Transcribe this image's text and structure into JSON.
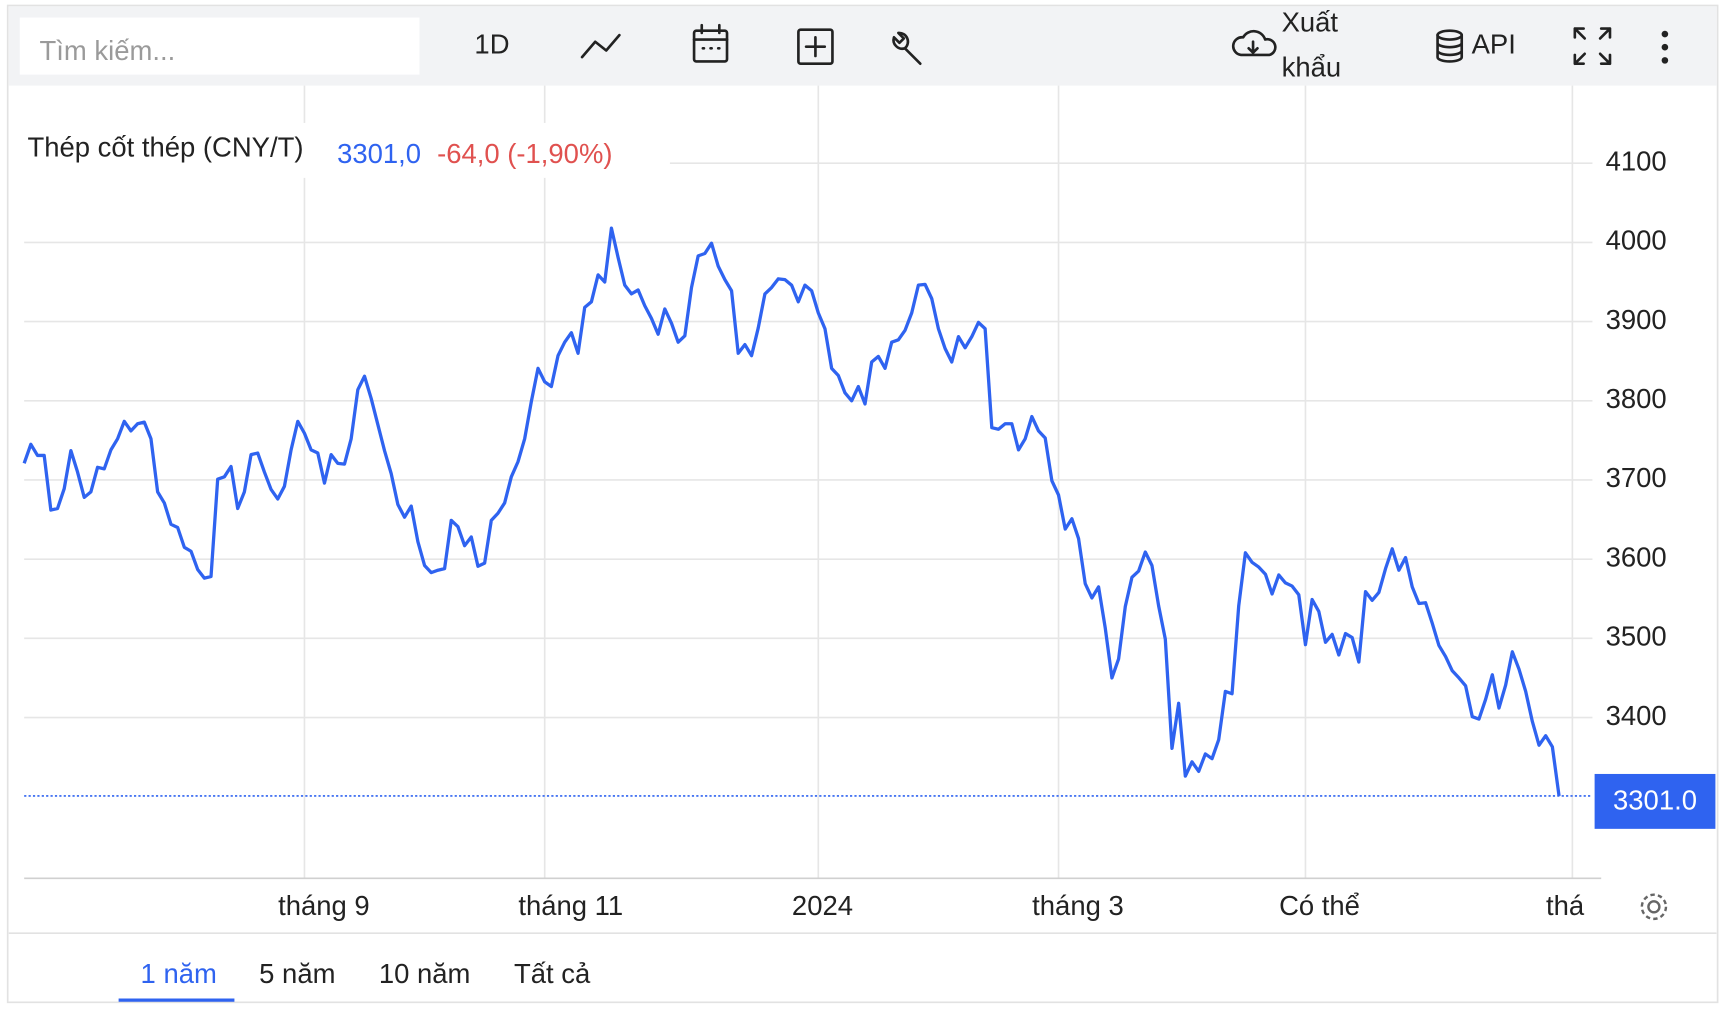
{
  "toolbar": {
    "search_placeholder": "Tìm kiếm...",
    "interval": "1D",
    "export": [
      "Xuất",
      "khẩu"
    ],
    "api": "API"
  },
  "chart_data": {
    "type": "line",
    "title": "Thép cốt thép (CNY/T)",
    "last_value": "3301,0",
    "change": "-64,0 (-1,90%)",
    "series": [
      {
        "color": "#2f63f0",
        "values": [
          3721,
          3745,
          3731,
          3731,
          3662,
          3664,
          3689,
          3737,
          3710,
          3678,
          3685,
          3716,
          3714,
          3738,
          3752,
          3774,
          3762,
          3771,
          3773,
          3752,
          3685,
          3671,
          3644,
          3640,
          3615,
          3610,
          3587,
          3576,
          3578,
          3701,
          3704,
          3717,
          3664,
          3685,
          3732,
          3734,
          3710,
          3688,
          3676,
          3692,
          3738,
          3774,
          3759,
          3738,
          3734,
          3696,
          3732,
          3721,
          3720,
          3752,
          3814,
          3831,
          3803,
          3770,
          3737,
          3708,
          3669,
          3653,
          3667,
          3622,
          3592,
          3583,
          3586,
          3588,
          3649,
          3641,
          3617,
          3628,
          3591,
          3595,
          3649,
          3658,
          3671,
          3704,
          3723,
          3752,
          3799,
          3841,
          3824,
          3818,
          3857,
          3874,
          3886,
          3860,
          3918,
          3925,
          3959,
          3950,
          4018,
          3981,
          3946,
          3935,
          3940,
          3920,
          3904,
          3884,
          3916,
          3898,
          3874,
          3882,
          3943,
          3983,
          3986,
          3999,
          3970,
          3953,
          3939,
          3860,
          3871,
          3857,
          3892,
          3935,
          3943,
          3954,
          3953,
          3946,
          3925,
          3946,
          3939,
          3911,
          3891,
          3841,
          3832,
          3810,
          3800,
          3818,
          3796,
          3849,
          3856,
          3841,
          3874,
          3877,
          3889,
          3911,
          3946,
          3947,
          3929,
          3891,
          3866,
          3849,
          3881,
          3867,
          3881,
          3899,
          3891,
          3766,
          3764,
          3771,
          3771,
          3738,
          3752,
          3780,
          3762,
          3753,
          3699,
          3681,
          3638,
          3651,
          3626,
          3569,
          3551,
          3565,
          3513,
          3450,
          3474,
          3540,
          3577,
          3585,
          3609,
          3592,
          3541,
          3499,
          3361,
          3418,
          3326,
          3344,
          3332,
          3354,
          3348,
          3372,
          3433,
          3430,
          3541,
          3608,
          3596,
          3590,
          3581,
          3556,
          3580,
          3570,
          3566,
          3555,
          3492,
          3549,
          3534,
          3495,
          3505,
          3479,
          3506,
          3501,
          3470,
          3559,
          3548,
          3558,
          3588,
          3613,
          3586,
          3602,
          3565,
          3544,
          3545,
          3519,
          3491,
          3477,
          3459,
          3450,
          3440,
          3401,
          3398,
          3423,
          3454,
          3412,
          3441,
          3483,
          3461,
          3433,
          3395,
          3365,
          3377,
          3363,
          3301
        ]
      }
    ],
    "xlim": [
      0,
      235
    ],
    "xticks": [
      {
        "value": 42,
        "label": "tháng 9"
      },
      {
        "value": 78,
        "label": "tháng 11"
      },
      {
        "value": 119,
        "label": "2024"
      },
      {
        "value": 155,
        "label": "tháng 3"
      },
      {
        "value": 192,
        "label": "Có thể"
      },
      {
        "value": 232,
        "label": "thá"
      }
    ],
    "ylim": [
      3197,
      4198
    ],
    "yticks": [
      3400,
      3500,
      3600,
      3700,
      3800,
      3900,
      4000,
      4100
    ],
    "grid": true,
    "last_label": {
      "value": 3301.0,
      "label": "3301.0"
    }
  },
  "ranges": {
    "items": [
      "1 năm",
      "5 năm",
      "10 năm",
      "Tất cả"
    ],
    "active": 0
  }
}
